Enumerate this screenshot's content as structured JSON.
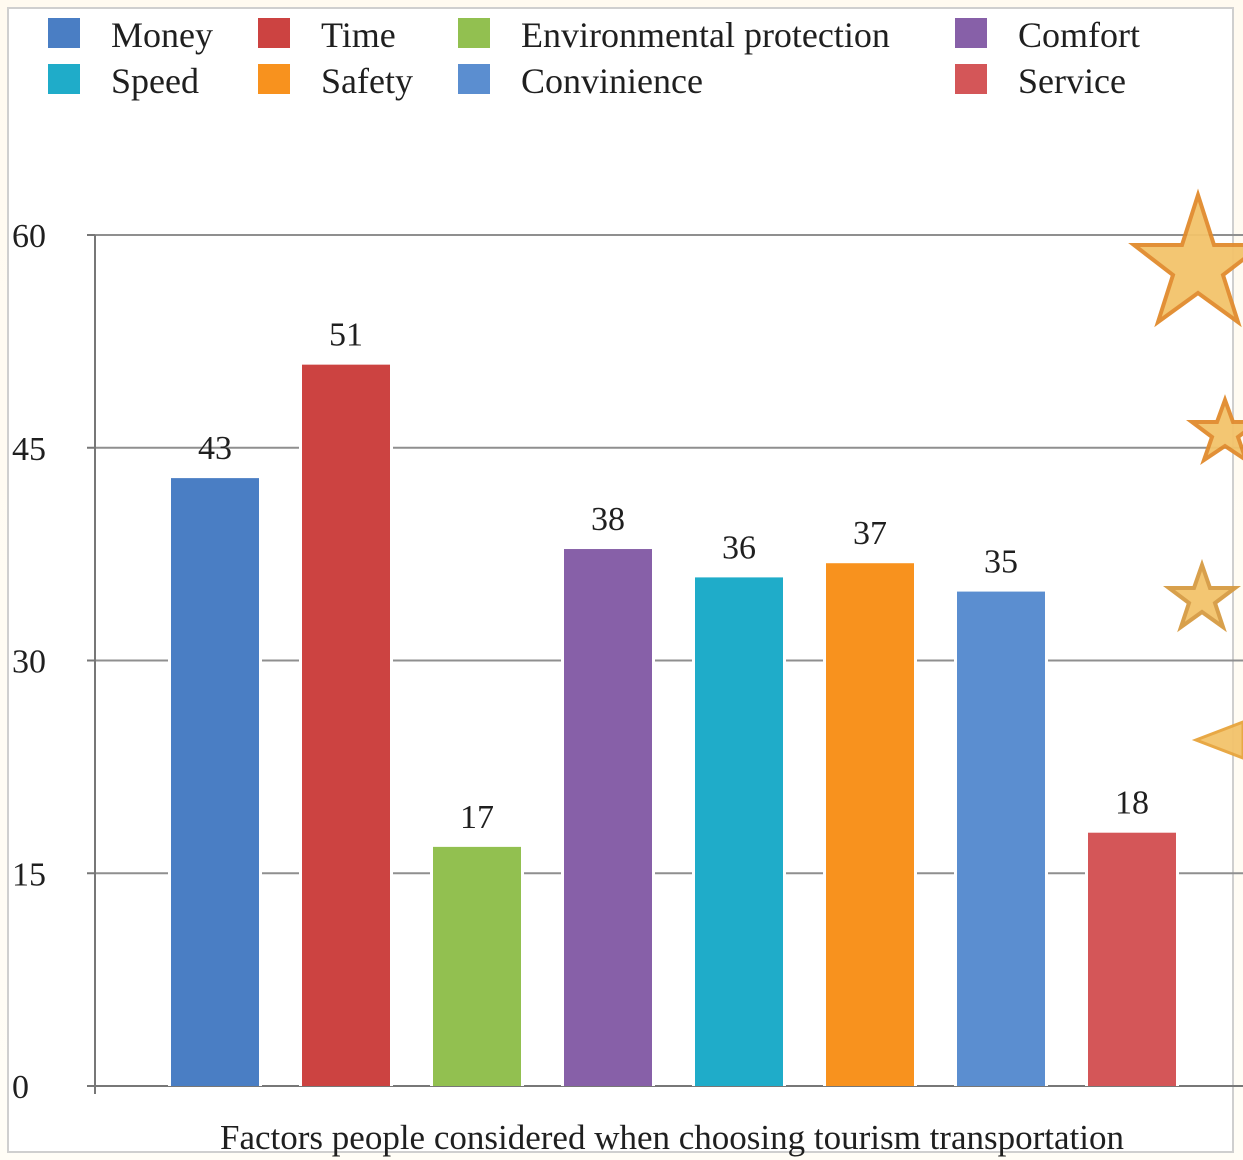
{
  "chart_data": {
    "type": "bar",
    "title": "",
    "xlabel": "Factors people considered when choosing tourism transportation",
    "ylabel": "",
    "ylim": [
      0,
      60
    ],
    "yticks": [
      0,
      15,
      30,
      45,
      60
    ],
    "grid": true,
    "legend_position": "top",
    "categories": [
      "Money",
      "Time",
      "Environmental protection",
      "Comfort",
      "Speed",
      "Safety",
      "Convinience",
      "Service"
    ],
    "values": [
      43,
      51,
      17,
      38,
      36,
      37,
      35,
      18
    ],
    "colors": [
      "#4a7ec4",
      "#cc4341",
      "#92c050",
      "#8760a8",
      "#1facc9",
      "#f8921e",
      "#5b8ed0",
      "#d45658"
    ]
  }
}
